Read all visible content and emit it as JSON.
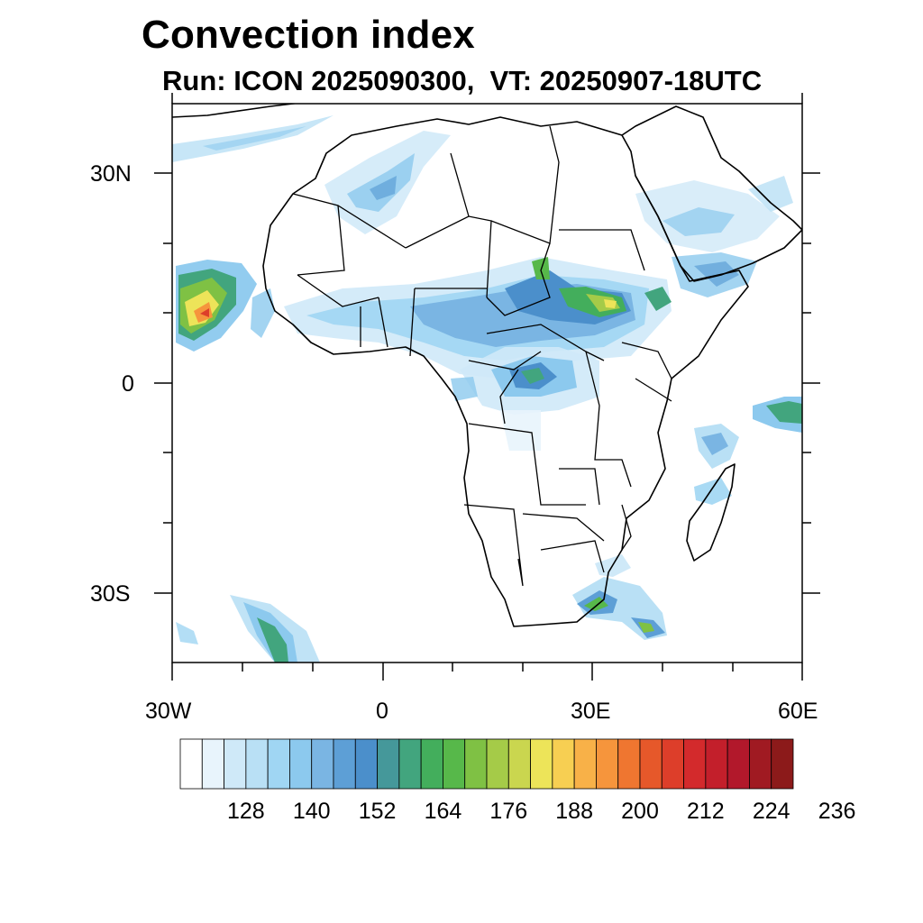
{
  "title": "Convection index",
  "subtitle": "Run: ICON 2025090300,  VT: 20250907-18UTC",
  "axes": {
    "lat_labels": [
      "30N",
      "0",
      "30S"
    ],
    "lon_labels": [
      "30W",
      "0",
      "30E",
      "60E"
    ],
    "lon_range": [
      -30,
      60
    ],
    "lat_range": [
      -40,
      40
    ]
  },
  "colorbar": {
    "colors": [
      "#ffffff",
      "#e8f4fc",
      "#cfe9f8",
      "#b9e0f5",
      "#a0d6f3",
      "#8cc9ee",
      "#7ab5e3",
      "#5d9fd6",
      "#4b8fcb",
      "#45989a",
      "#42a57e",
      "#43ae5c",
      "#57b84a",
      "#7fc144",
      "#a5cb48",
      "#cad64f",
      "#ede459",
      "#f7cf52",
      "#f8b148",
      "#f6953c",
      "#ef7630",
      "#e6582a",
      "#dd3e2a",
      "#d32a2c",
      "#c31f2b",
      "#b2182b",
      "#a01a22",
      "#8c1a1a"
    ],
    "labels": [
      "128",
      "140",
      "152",
      "164",
      "176",
      "188",
      "200",
      "212",
      "224",
      "236"
    ]
  }
}
